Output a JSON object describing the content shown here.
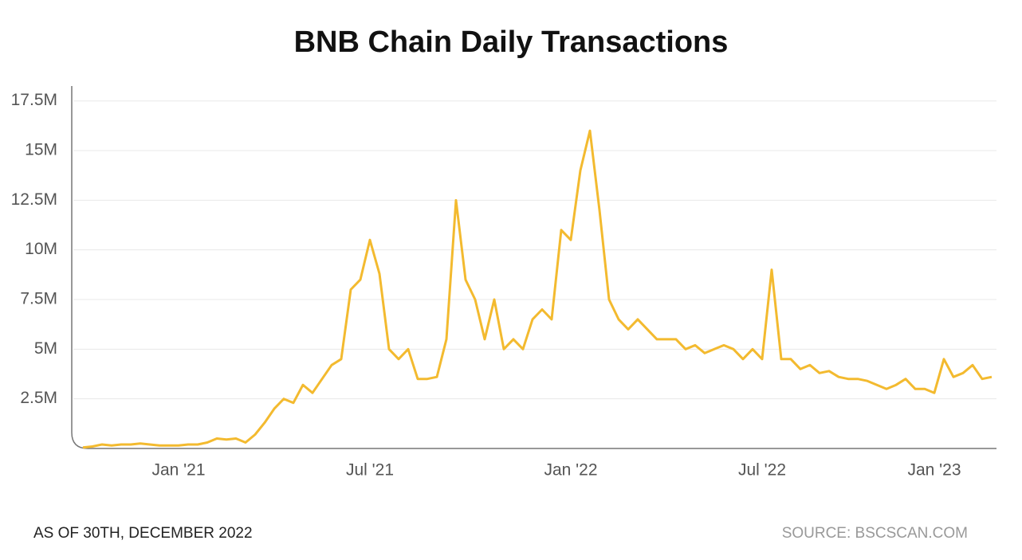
{
  "chart_data": {
    "type": "line",
    "title": "BNB Chain Daily Transactions",
    "footnote": "AS OF 30TH, DECEMBER 2022",
    "source": "SOURCE: BSCSCAN.COM",
    "color": "#f3ba2f",
    "grid": true,
    "categories": [
      null,
      null,
      null,
      null,
      null,
      null,
      null,
      null,
      null,
      null,
      "Jan '21",
      null,
      null,
      null,
      null,
      null,
      null,
      null,
      null,
      null,
      null,
      null,
      null,
      null,
      null,
      null,
      null,
      null,
      null,
      null,
      "Jul '21",
      null,
      null,
      null,
      null,
      null,
      null,
      null,
      null,
      null,
      null,
      null,
      null,
      null,
      null,
      null,
      null,
      null,
      null,
      null,
      null,
      "Jan '22",
      null,
      null,
      null,
      null,
      null,
      null,
      null,
      null,
      null,
      null,
      null,
      null,
      null,
      null,
      null,
      null,
      null,
      null,
      null,
      "Jul '22",
      null,
      null,
      null,
      null,
      null,
      null,
      null,
      null,
      null,
      null,
      null,
      null,
      null,
      null,
      null,
      null,
      null,
      "Jan '23",
      null,
      null,
      null,
      null,
      null,
      null
    ],
    "values": [
      50000,
      100000,
      200000,
      150000,
      200000,
      200000,
      250000,
      200000,
      150000,
      150000,
      150000,
      200000,
      200000,
      300000,
      500000,
      450000,
      500000,
      300000,
      700000,
      1300000,
      2000000,
      2500000,
      2300000,
      3200000,
      2800000,
      3500000,
      4200000,
      4500000,
      8000000,
      8500000,
      10500000,
      8800000,
      5000000,
      4500000,
      5000000,
      3500000,
      3500000,
      3600000,
      5500000,
      12500000,
      8500000,
      7500000,
      5500000,
      7500000,
      5000000,
      5500000,
      5000000,
      6500000,
      7000000,
      6500000,
      11000000,
      10500000,
      14000000,
      16000000,
      12000000,
      7500000,
      6500000,
      6000000,
      6500000,
      6000000,
      5500000,
      5500000,
      5500000,
      5000000,
      5200000,
      4800000,
      5000000,
      5200000,
      5000000,
      4500000,
      5000000,
      4500000,
      9000000,
      4500000,
      4500000,
      4000000,
      4200000,
      3800000,
      3900000,
      3600000,
      3500000,
      3500000,
      3400000,
      3200000,
      3000000,
      3200000,
      3500000,
      3000000,
      3000000,
      2800000,
      4500000,
      3600000,
      3800000,
      4200000,
      3500000,
      3600000
    ],
    "ylim": [
      0,
      18250000
    ],
    "yticks": [
      {
        "value": 2500000,
        "label": "2.5M"
      },
      {
        "value": 5000000,
        "label": "5M"
      },
      {
        "value": 7500000,
        "label": "7.5M"
      },
      {
        "value": 10000000,
        "label": "10M"
      },
      {
        "value": 12500000,
        "label": "12.5M"
      },
      {
        "value": 15000000,
        "label": "15M"
      },
      {
        "value": 17500000,
        "label": "17.5M"
      }
    ]
  }
}
